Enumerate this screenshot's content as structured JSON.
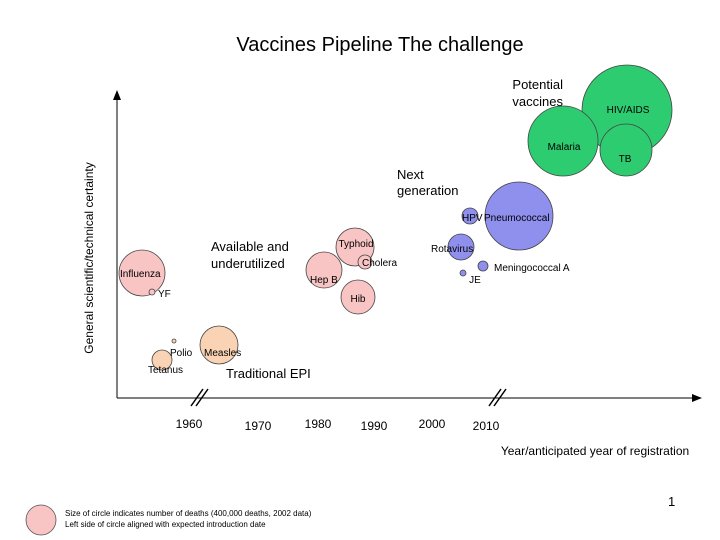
{
  "chart_data": {
    "type": "scatter",
    "title": "Vaccines Pipeline  The challenge",
    "xlabel": "Year/anticipated year of registration",
    "ylabel": "General scientific/technical certainty",
    "x_ticks": [
      1960,
      1970,
      1980,
      1990,
      2000,
      2010
    ],
    "xlim": [
      1955,
      2015
    ],
    "bubble_encoding": "Circle size indicates number of deaths",
    "groups": [
      {
        "name": "Traditional EPI",
        "label": "Traditional EPI"
      },
      {
        "name": "Available and underutilized",
        "label": "Available and underutilized"
      },
      {
        "name": "Next generation",
        "label": "Next generation"
      },
      {
        "name": "Potential vaccines",
        "label": "Potential vaccines"
      }
    ],
    "bubbles": [
      {
        "label": "HIV/AIDS",
        "group": "Potential vaccines",
        "color": "#2ecc71"
      },
      {
        "label": "TB",
        "group": "Potential vaccines",
        "color": "#2ecc71"
      },
      {
        "label": "Malaria",
        "group": "Potential vaccines",
        "color": "#2ecc71"
      },
      {
        "label": "Pneumococcal",
        "group": "Next generation",
        "color": "#8f8fee"
      },
      {
        "label": "HPV",
        "group": "Next generation",
        "color": "#8f8fee"
      },
      {
        "label": "Rotavirus",
        "group": "Next generation",
        "color": "#8f8fee"
      },
      {
        "label": "Meningococcal A",
        "group": "Next generation",
        "color": "#8f8fee"
      },
      {
        "label": "JE",
        "group": "Next generation",
        "color": "#8f8fee"
      },
      {
        "label": "Typhoid",
        "group": "Available and underutilized",
        "color": "#f8c4c4"
      },
      {
        "label": "Cholera",
        "group": "Available and underutilized",
        "color": "#f8c4c4"
      },
      {
        "label": "Hep B",
        "group": "Available and underutilized",
        "color": "#f8c4c4"
      },
      {
        "label": "Hib",
        "group": "Available and underutilized",
        "color": "#f8c4c4"
      },
      {
        "label": "Influenza",
        "group": "Available and underutilized",
        "color": "#f8c4c4"
      },
      {
        "label": "YF",
        "group": "Available and underutilized",
        "color": "#f8c4c4"
      },
      {
        "label": "Polio",
        "group": "Traditional EPI",
        "color": "#f9d3b4"
      },
      {
        "label": "Measles",
        "group": "Traditional EPI",
        "color": "#f9d3b4"
      },
      {
        "label": "Tetanus",
        "group": "Traditional EPI",
        "color": "#f9d3b4"
      }
    ]
  },
  "legend": {
    "line1": "Size of circle indicates number of deaths (400,000 deaths, 2002 data)",
    "line2": "Left side of circle aligned with expected introduction date",
    "swatch_color": "#f8c4c4"
  },
  "page_number": "1"
}
